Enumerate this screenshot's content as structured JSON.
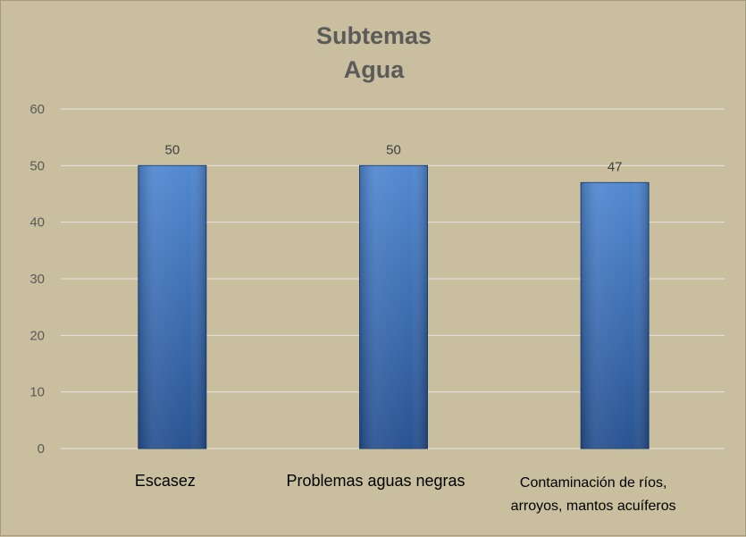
{
  "chart_data": {
    "type": "bar",
    "title_lines": [
      "Subtemas",
      "Agua"
    ],
    "categories": [
      [
        "Escasez"
      ],
      [
        "Problemas aguas negras"
      ],
      [
        "Contaminación de ríos,",
        "arroyos, mantos acuíferos"
      ]
    ],
    "values": [
      50,
      50,
      47
    ],
    "data_labels": [
      "50",
      "50",
      "47"
    ],
    "ylim": [
      0,
      60
    ],
    "yticks": [
      0,
      10,
      20,
      30,
      40,
      50,
      60
    ],
    "grid": true,
    "legend": "none",
    "colors": {
      "bar_light": "#4f86d0",
      "bar_dark": "#25508f",
      "grid": "#e6e6e6",
      "background": "#c9bf9e"
    }
  }
}
